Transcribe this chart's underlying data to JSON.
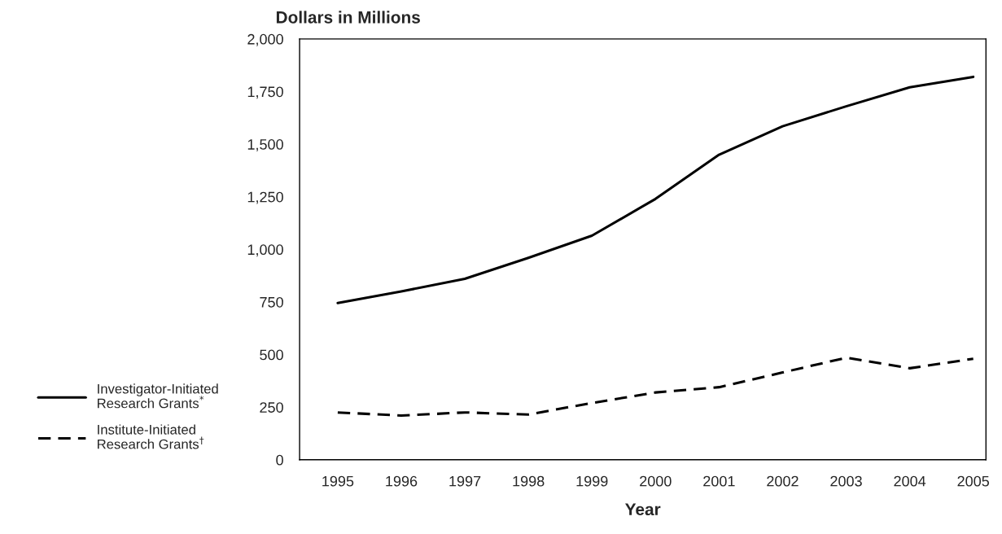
{
  "chart_data": {
    "type": "line",
    "title": "Dollars in Millions",
    "xlabel": "Year",
    "x": [
      1995,
      1996,
      1997,
      1998,
      1999,
      2000,
      2001,
      2002,
      2003,
      2004,
      2005
    ],
    "series": [
      {
        "name": "Investigator-Initiated\nResearch Grants$^{*}$",
        "color": "#000000",
        "line_style": "solid",
        "values": [
          745,
          800,
          860,
          960,
          1065,
          1240,
          1450,
          1585,
          1680,
          1770,
          1820
        ]
      },
      {
        "name": "Institute-Initiated\nResearch Grants$^{†}$",
        "color": "#000000",
        "line_style": "dashed",
        "values": [
          225,
          210,
          225,
          215,
          270,
          320,
          345,
          415,
          485,
          435,
          480
        ]
      }
    ],
    "xlim": [
      1994.4,
      2005.2
    ],
    "xticks": [
      1995,
      1996,
      1997,
      1998,
      1999,
      2000,
      2001,
      2002,
      2003,
      2004,
      2005
    ],
    "ylim": [
      0,
      2000
    ],
    "yticks": [
      {
        "value": 0,
        "label": "0"
      },
      {
        "value": 250,
        "label": "250"
      },
      {
        "value": 500,
        "label": "500"
      },
      {
        "value": 750,
        "label": "750"
      },
      {
        "value": 1000,
        "label": "1,000"
      },
      {
        "value": 1250,
        "label": "1,250"
      },
      {
        "value": 1500,
        "label": "1,500"
      },
      {
        "value": 1750,
        "label": "1,750"
      },
      {
        "value": 2000,
        "label": "2,000"
      }
    ],
    "grid": false,
    "legend": "left",
    "marker": "none"
  }
}
